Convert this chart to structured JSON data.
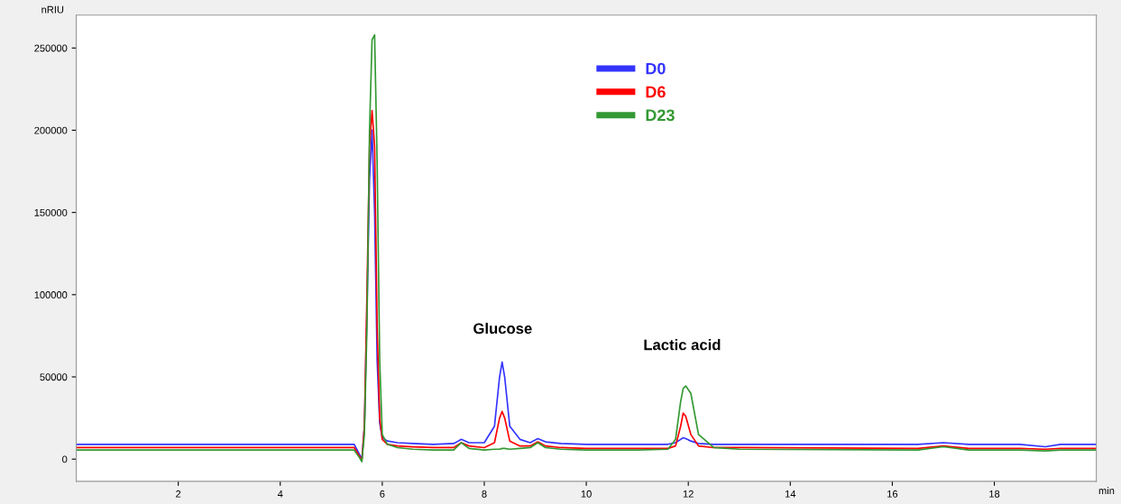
{
  "chart_data": {
    "type": "line",
    "x": [
      0,
      5.45,
      5.55,
      5.6,
      5.65,
      5.7,
      5.75,
      5.8,
      5.85,
      5.9,
      5.95,
      6.0,
      6.1,
      6.3,
      6.6,
      7.0,
      7.4,
      7.55,
      7.7,
      8.0,
      8.2,
      8.3,
      8.35,
      8.4,
      8.5,
      8.7,
      8.9,
      9.05,
      9.2,
      9.5,
      10,
      11,
      11.6,
      11.75,
      11.85,
      11.9,
      11.95,
      12.05,
      12.2,
      12.5,
      13,
      16.5,
      17.0,
      17.5,
      18.5,
      19.0,
      19.3,
      20
    ],
    "series": [
      {
        "name": "D0",
        "color": "#3333ff",
        "values": [
          9000,
          9000,
          3000,
          0,
          20000,
          90000,
          170000,
          200000,
          150000,
          60000,
          22000,
          13000,
          11000,
          10000,
          9500,
          9000,
          9500,
          12000,
          10000,
          10000,
          20000,
          50000,
          59000,
          50000,
          20000,
          12000,
          10000,
          12500,
          10500,
          9500,
          9000,
          9000,
          9000,
          10000,
          12000,
          13000,
          12500,
          11000,
          9500,
          9000,
          9000,
          9000,
          10000,
          9000,
          9000,
          7500,
          9000,
          9000
        ]
      },
      {
        "name": "D6",
        "color": "#ff0000",
        "values": [
          7000,
          7000,
          2000,
          -1000,
          20000,
          100000,
          190000,
          212000,
          190000,
          80000,
          25000,
          12000,
          9000,
          8000,
          7500,
          7000,
          7000,
          10000,
          8000,
          7000,
          10000,
          25000,
          29000,
          25000,
          11000,
          8000,
          8000,
          10500,
          8000,
          7000,
          6500,
          6500,
          6500,
          8000,
          20000,
          28000,
          26000,
          15000,
          8000,
          7000,
          7000,
          6500,
          8000,
          6500,
          6500,
          6000,
          6500,
          6500
        ]
      },
      {
        "name": "D23",
        "color": "#339933",
        "values": [
          5500,
          5500,
          1000,
          -1500,
          15000,
          80000,
          200000,
          255000,
          258000,
          180000,
          60000,
          15000,
          9000,
          7000,
          6000,
          5500,
          5500,
          10000,
          6500,
          5500,
          6000,
          6000,
          6500,
          6500,
          6000,
          6500,
          7000,
          10000,
          7000,
          6000,
          5500,
          5500,
          6000,
          12000,
          35000,
          43000,
          44500,
          40000,
          15000,
          7000,
          6000,
          5500,
          7500,
          5500,
          5500,
          5000,
          5500,
          5500
        ]
      }
    ],
    "xlabel": "min",
    "ylabel": "nRIU",
    "xlim": [
      0,
      20
    ],
    "xticks": [
      2,
      4,
      6,
      8,
      10,
      12,
      14,
      16,
      18
    ],
    "ylim": [
      -13500,
      270000
    ],
    "yticks": [
      0,
      50000,
      100000,
      150000,
      200000,
      250000
    ],
    "annotations": [
      "Glucose",
      "Lactic acid"
    ],
    "legend": "top",
    "grid": false
  }
}
